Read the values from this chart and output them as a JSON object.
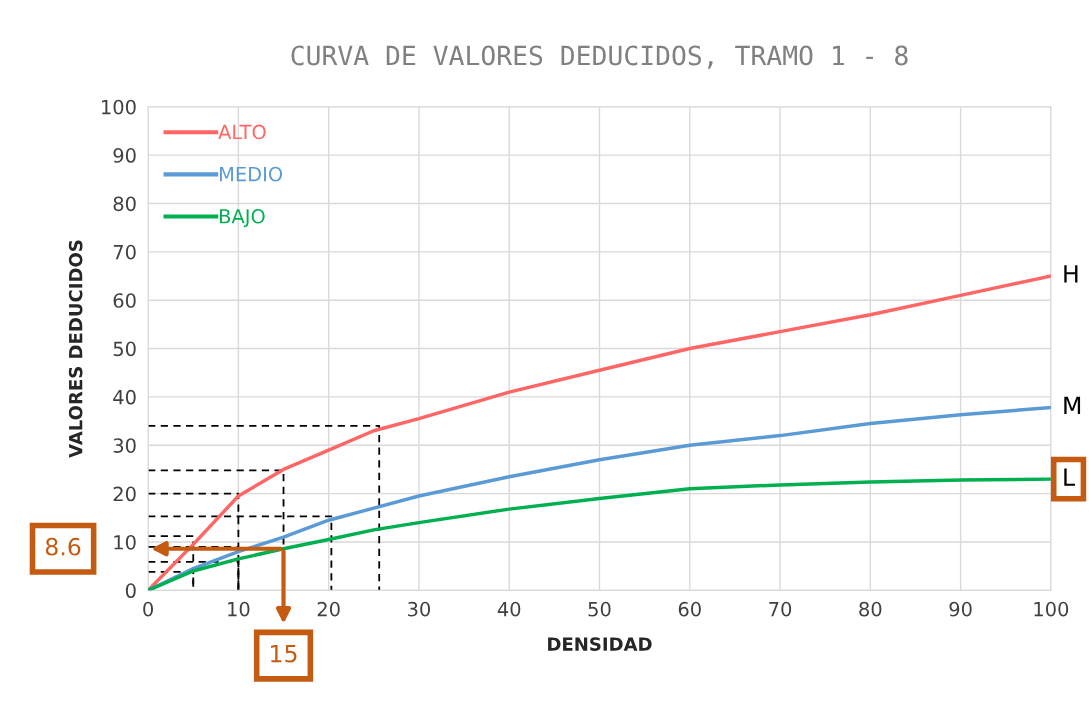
{
  "chart_data": {
    "type": "line",
    "title": "CURVA DE VALORES DEDUCIDOS, TRAMO 1 - 8",
    "xlabel": "DENSIDAD",
    "ylabel": "VALORES DEDUCIDOS",
    "xlim": [
      0,
      100
    ],
    "ylim": [
      0,
      100
    ],
    "xticks": [
      0,
      10,
      20,
      30,
      40,
      50,
      60,
      70,
      80,
      90,
      100
    ],
    "yticks": [
      0,
      10,
      20,
      30,
      40,
      50,
      60,
      70,
      80,
      90,
      100
    ],
    "grid": true,
    "legend": "top left",
    "line_style": "solid",
    "marker": "none",
    "x": [
      0,
      5,
      10,
      15,
      20,
      25,
      30,
      40,
      50,
      60,
      70,
      80,
      90,
      100
    ],
    "series": [
      {
        "name": "ALTO",
        "color": "#ff6666",
        "values": [
          0,
          9.5,
          19.5,
          25,
          29,
          33,
          35.5,
          41,
          45.5,
          50,
          53.5,
          57,
          61,
          65
        ]
      },
      {
        "name": "MEDIO",
        "color": "#5b9bd5",
        "values": [
          0,
          4.5,
          8,
          11,
          14.5,
          17,
          19.5,
          23.5,
          27,
          30,
          32,
          34.5,
          36.3,
          37.8
        ]
      },
      {
        "name": "BAJO",
        "color": "#00b050",
        "values": [
          0,
          4,
          6.5,
          8.6,
          10.5,
          12.5,
          14,
          16.8,
          19,
          21,
          21.8,
          22.4,
          22.8,
          23
        ]
      },
      {
        "color": "#000000",
        "line_style": "dashed",
        "x": [
          0,
          25.6,
          25.6
        ],
        "values": [
          34,
          34,
          0
        ]
      },
      {
        "color": "#000000",
        "line_style": "dashed",
        "x": [
          0,
          15,
          15
        ],
        "values": [
          24.8,
          24.8,
          0
        ]
      },
      {
        "color": "#000000",
        "line_style": "dashed",
        "x": [
          0,
          10,
          10
        ],
        "values": [
          20,
          20,
          0
        ]
      },
      {
        "color": "#000000",
        "line_style": "dashed",
        "x": [
          0,
          20.3,
          20.3
        ],
        "values": [
          15.3,
          15.3,
          0
        ]
      },
      {
        "color": "#000000",
        "line_style": "dashed",
        "x": [
          0,
          5,
          5
        ],
        "values": [
          11.2,
          11.2,
          0
        ]
      },
      {
        "color": "#000000",
        "line_style": "dashed",
        "x": [
          0,
          10,
          10
        ],
        "values": [
          9,
          9,
          0
        ]
      },
      {
        "color": "#000000",
        "line_style": "dashed",
        "x": [
          0,
          10,
          10
        ],
        "values": [
          5.9,
          5.9,
          0
        ]
      },
      {
        "color": "#000000",
        "line_style": "dashed",
        "x": [
          0,
          5,
          5
        ],
        "values": [
          3.8,
          3.8,
          0
        ]
      }
    ],
    "annotations": [
      {
        "text": "8.6",
        "x": 0,
        "y": 8.6
      },
      {
        "text": "15",
        "x": 15,
        "y": 0
      },
      {
        "text": "H",
        "x": 100,
        "y": 65
      },
      {
        "text": "M",
        "x": 100,
        "y": 37.8
      },
      {
        "text": "L",
        "x": 100,
        "y": 23
      }
    ]
  }
}
